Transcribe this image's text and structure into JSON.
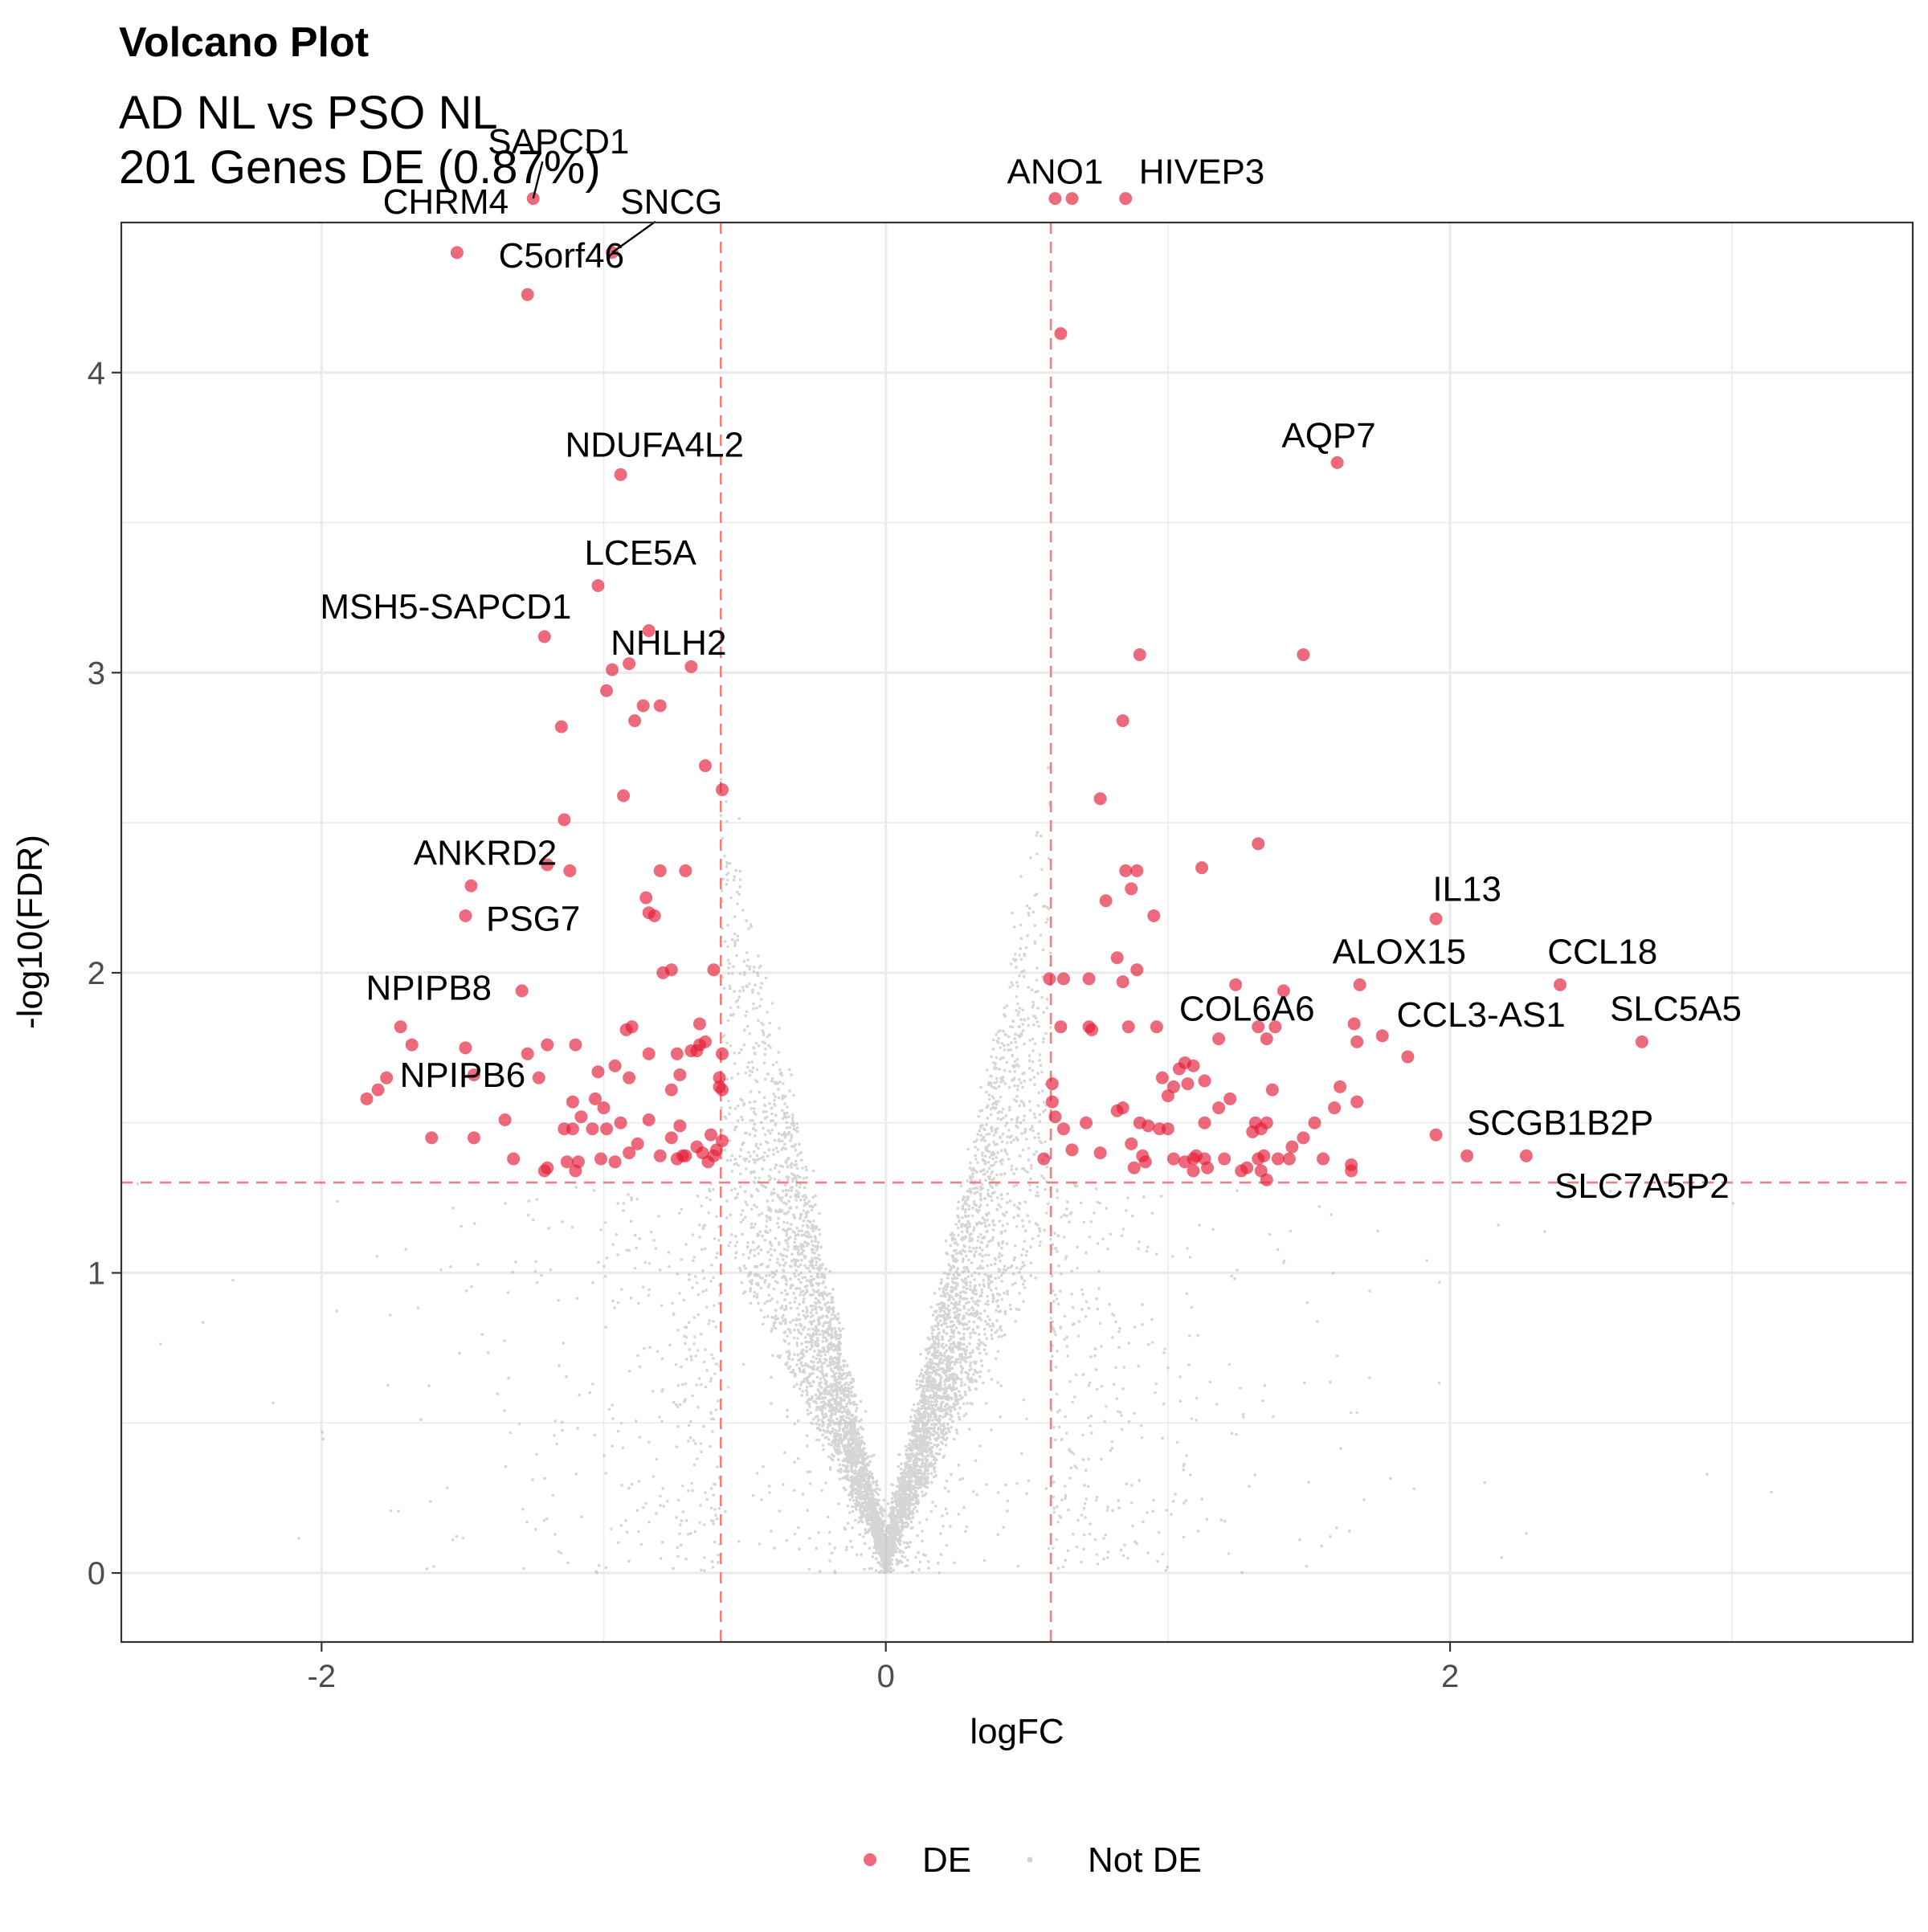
{
  "chart_data": {
    "type": "scatter",
    "title": "Volcano Plot",
    "subtitle_lines": [
      "AD NL vs PSO NL",
      "201 Genes DE (0.87%)"
    ],
    "xlabel": "logFC",
    "ylabel": "-log10(FDR)",
    "xlim": [
      -2.71,
      3.64
    ],
    "ylim": [
      -0.23,
      4.5
    ],
    "x_ticks": [
      -2,
      0,
      2
    ],
    "y_ticks": [
      0,
      1,
      2,
      3,
      4
    ],
    "grid": true,
    "thresholds": {
      "logfc": [
        -0.585,
        0.585
      ],
      "neg_log10_fdr": 1.301
    },
    "legend": {
      "position": "bottom",
      "entries": [
        "DE",
        "Not DE"
      ]
    },
    "colors": {
      "de": "#e41a36",
      "not_de": "#b3b3b3",
      "threshold": "#f08080"
    },
    "series": [
      {
        "name": "DE",
        "points": [
          [
            -1.25,
            4.58
          ],
          [
            -1.52,
            4.4
          ],
          [
            -0.97,
            4.4
          ],
          [
            -1.27,
            4.26
          ],
          [
            0.6,
            4.58
          ],
          [
            0.66,
            4.58
          ],
          [
            0.85,
            4.58
          ],
          [
            0.62,
            4.13
          ],
          [
            -0.94,
            3.66
          ],
          [
            1.6,
            3.7
          ],
          [
            -1.02,
            3.29
          ],
          [
            -1.21,
            3.12
          ],
          [
            -0.84,
            3.14
          ],
          [
            -0.97,
            3.01
          ],
          [
            -0.91,
            3.03
          ],
          [
            -0.69,
            3.02
          ],
          [
            -0.99,
            2.94
          ],
          [
            -0.86,
            2.89
          ],
          [
            -0.8,
            2.89
          ],
          [
            -0.89,
            2.84
          ],
          [
            -1.15,
            2.82
          ],
          [
            0.9,
            3.06
          ],
          [
            1.48,
            3.06
          ],
          [
            0.84,
            2.84
          ],
          [
            -0.64,
            2.69
          ],
          [
            -0.58,
            2.61
          ],
          [
            -0.93,
            2.59
          ],
          [
            0.76,
            2.58
          ],
          [
            -1.14,
            2.51
          ],
          [
            1.32,
            2.43
          ],
          [
            -1.2,
            2.36
          ],
          [
            -1.12,
            2.34
          ],
          [
            -0.8,
            2.34
          ],
          [
            -0.71,
            2.34
          ],
          [
            0.85,
            2.34
          ],
          [
            0.89,
            2.34
          ],
          [
            1.12,
            2.35
          ],
          [
            -1.47,
            2.29
          ],
          [
            0.87,
            2.28
          ],
          [
            -0.85,
            2.25
          ],
          [
            -0.84,
            2.2
          ],
          [
            -0.82,
            2.19
          ],
          [
            0.78,
            2.24
          ],
          [
            0.95,
            2.19
          ],
          [
            -1.49,
            2.19
          ],
          [
            -0.79,
            2.0
          ],
          [
            -0.76,
            2.01
          ],
          [
            -0.61,
            2.01
          ],
          [
            0.82,
            2.05
          ],
          [
            0.89,
            2.01
          ],
          [
            0.58,
            1.98
          ],
          [
            0.63,
            1.98
          ],
          [
            0.72,
            1.98
          ],
          [
            0.84,
            1.97
          ],
          [
            1.24,
            1.96
          ],
          [
            1.41,
            1.94
          ],
          [
            1.68,
            1.96
          ],
          [
            1.95,
            2.18
          ],
          [
            2.39,
            1.96
          ],
          [
            -1.29,
            1.94
          ],
          [
            -1.72,
            1.82
          ],
          [
            -0.9,
            1.82
          ],
          [
            -0.92,
            1.81
          ],
          [
            -0.66,
            1.83
          ],
          [
            -0.66,
            1.76
          ],
          [
            -0.64,
            1.77
          ],
          [
            0.62,
            1.82
          ],
          [
            0.72,
            1.82
          ],
          [
            0.73,
            1.81
          ],
          [
            0.86,
            1.82
          ],
          [
            0.96,
            1.82
          ],
          [
            1.32,
            1.82
          ],
          [
            1.38,
            1.82
          ],
          [
            1.66,
            1.83
          ],
          [
            1.18,
            1.78
          ],
          [
            1.35,
            1.78
          ],
          [
            1.67,
            1.77
          ],
          [
            1.76,
            1.79
          ],
          [
            2.68,
            1.77
          ],
          [
            -1.68,
            1.76
          ],
          [
            -1.49,
            1.75
          ],
          [
            -1.2,
            1.76
          ],
          [
            -1.1,
            1.76
          ],
          [
            -0.74,
            1.73
          ],
          [
            -0.69,
            1.74
          ],
          [
            -0.67,
            1.74
          ],
          [
            -0.58,
            1.73
          ],
          [
            -0.84,
            1.73
          ],
          [
            -0.96,
            1.69
          ],
          [
            -1.27,
            1.73
          ],
          [
            -1.02,
            1.67
          ],
          [
            -1.46,
            1.66
          ],
          [
            -1.77,
            1.65
          ],
          [
            -1.23,
            1.65
          ],
          [
            -0.91,
            1.65
          ],
          [
            -0.59,
            1.65
          ],
          [
            -0.59,
            1.62
          ],
          [
            -0.58,
            1.61
          ],
          [
            -0.76,
            1.61
          ],
          [
            -0.73,
            1.66
          ],
          [
            -1.8,
            1.61
          ],
          [
            -1.84,
            1.58
          ],
          [
            -1.11,
            1.57
          ],
          [
            -1.03,
            1.58
          ],
          [
            -1.0,
            1.55
          ],
          [
            -0.94,
            1.5
          ],
          [
            -0.84,
            1.51
          ],
          [
            -1.08,
            1.52
          ],
          [
            -1.14,
            1.48
          ],
          [
            -1.11,
            1.48
          ],
          [
            -1.04,
            1.48
          ],
          [
            -0.99,
            1.48
          ],
          [
            -1.35,
            1.51
          ],
          [
            -0.73,
            1.49
          ],
          [
            -0.76,
            1.45
          ],
          [
            -0.62,
            1.46
          ],
          [
            -0.58,
            1.44
          ],
          [
            -1.61,
            1.45
          ],
          [
            -1.46,
            1.45
          ],
          [
            -0.88,
            1.43
          ],
          [
            -0.91,
            1.4
          ],
          [
            -0.71,
            1.39
          ],
          [
            -0.67,
            1.42
          ],
          [
            -0.65,
            1.4
          ],
          [
            -0.61,
            1.39
          ],
          [
            -0.6,
            1.41
          ],
          [
            -0.63,
            1.37
          ],
          [
            -0.74,
            1.38
          ],
          [
            -0.72,
            1.39
          ],
          [
            -0.8,
            1.39
          ],
          [
            -1.32,
            1.38
          ],
          [
            -1.13,
            1.37
          ],
          [
            -1.09,
            1.37
          ],
          [
            -1.01,
            1.38
          ],
          [
            -0.96,
            1.37
          ],
          [
            -1.2,
            1.35
          ],
          [
            -1.21,
            1.34
          ],
          [
            -1.1,
            1.34
          ],
          [
            0.59,
            1.63
          ],
          [
            0.98,
            1.65
          ],
          [
            1.04,
            1.68
          ],
          [
            1.02,
            1.62
          ],
          [
            1.07,
            1.63
          ],
          [
            1.0,
            1.59
          ],
          [
            1.06,
            1.7
          ],
          [
            1.09,
            1.69
          ],
          [
            1.13,
            1.64
          ],
          [
            1.22,
            1.58
          ],
          [
            1.37,
            1.61
          ],
          [
            1.61,
            1.62
          ],
          [
            1.67,
            1.57
          ],
          [
            1.59,
            1.55
          ],
          [
            1.85,
            1.72
          ],
          [
            0.59,
            1.57
          ],
          [
            0.6,
            1.52
          ],
          [
            0.63,
            1.48
          ],
          [
            0.71,
            1.5
          ],
          [
            0.82,
            1.54
          ],
          [
            0.84,
            1.55
          ],
          [
            0.9,
            1.5
          ],
          [
            0.93,
            1.49
          ],
          [
            0.97,
            1.48
          ],
          [
            1.0,
            1.48
          ],
          [
            1.13,
            1.5
          ],
          [
            1.18,
            1.55
          ],
          [
            1.31,
            1.5
          ],
          [
            1.33,
            1.48
          ],
          [
            1.35,
            1.5
          ],
          [
            1.52,
            1.5
          ],
          [
            1.3,
            1.47
          ],
          [
            1.39,
            1.38
          ],
          [
            1.44,
            1.42
          ],
          [
            1.48,
            1.45
          ],
          [
            1.95,
            1.46
          ],
          [
            0.66,
            1.41
          ],
          [
            0.76,
            1.4
          ],
          [
            0.87,
            1.43
          ],
          [
            0.91,
            1.39
          ],
          [
            0.92,
            1.37
          ],
          [
            1.02,
            1.38
          ],
          [
            1.06,
            1.37
          ],
          [
            1.09,
            1.38
          ],
          [
            1.1,
            1.39
          ],
          [
            1.13,
            1.38
          ],
          [
            1.2,
            1.38
          ],
          [
            1.28,
            1.35
          ],
          [
            1.32,
            1.38
          ],
          [
            1.34,
            1.39
          ],
          [
            1.43,
            1.38
          ],
          [
            1.55,
            1.38
          ],
          [
            1.65,
            1.36
          ],
          [
            2.06,
            1.39
          ],
          [
            2.27,
            1.39
          ],
          [
            0.88,
            1.35
          ],
          [
            1.09,
            1.34
          ],
          [
            1.14,
            1.35
          ],
          [
            1.26,
            1.34
          ],
          [
            1.33,
            1.34
          ],
          [
            1.35,
            1.31
          ],
          [
            1.65,
            1.34
          ],
          [
            0.56,
            1.38
          ]
        ]
      },
      {
        "name": "Not DE",
        "generated_by_script": true
      }
    ],
    "labels": [
      {
        "text": "SAPCD1",
        "x": -1.16,
        "y": 4.73,
        "px": -1.25,
        "py": 4.58
      },
      {
        "text": "CHRM4",
        "x": -1.56,
        "y": 4.53
      },
      {
        "text": "SNCG",
        "x": -0.76,
        "y": 4.53,
        "px": -0.97,
        "py": 4.4
      },
      {
        "text": "C5orf46",
        "x": -1.15,
        "y": 4.35
      },
      {
        "text": "ANO1",
        "x": 0.6,
        "y": 4.63
      },
      {
        "text": "HIVEP3",
        "x": 1.12,
        "y": 4.63
      },
      {
        "text": "NDUFA4L2",
        "x": -0.82,
        "y": 3.72
      },
      {
        "text": "AQP7",
        "x": 1.57,
        "y": 3.75
      },
      {
        "text": "LCE5A",
        "x": -0.87,
        "y": 3.36
      },
      {
        "text": "MSH5-SAPCD1",
        "x": -1.56,
        "y": 3.18
      },
      {
        "text": "NHLH2",
        "x": -0.77,
        "y": 3.06
      },
      {
        "text": "ANKRD2",
        "x": -1.42,
        "y": 2.36
      },
      {
        "text": "PSG7",
        "x": -1.25,
        "y": 2.14
      },
      {
        "text": "IL13",
        "x": 2.06,
        "y": 2.24
      },
      {
        "text": "ALOX15",
        "x": 1.82,
        "y": 2.03
      },
      {
        "text": "CCL18",
        "x": 2.54,
        "y": 2.03
      },
      {
        "text": "NPIPB8",
        "x": -1.62,
        "y": 1.91
      },
      {
        "text": "COL6A6",
        "x": 1.28,
        "y": 1.84
      },
      {
        "text": "CCL3-AS1",
        "x": 2.11,
        "y": 1.82
      },
      {
        "text": "SLC5A5",
        "x": 2.8,
        "y": 1.84
      },
      {
        "text": "NPIPB6",
        "x": -1.5,
        "y": 1.62
      },
      {
        "text": "SCGB1B2P",
        "x": 2.39,
        "y": 1.46
      },
      {
        "text": "SLC7A5P2",
        "x": 2.68,
        "y": 1.25
      }
    ]
  }
}
